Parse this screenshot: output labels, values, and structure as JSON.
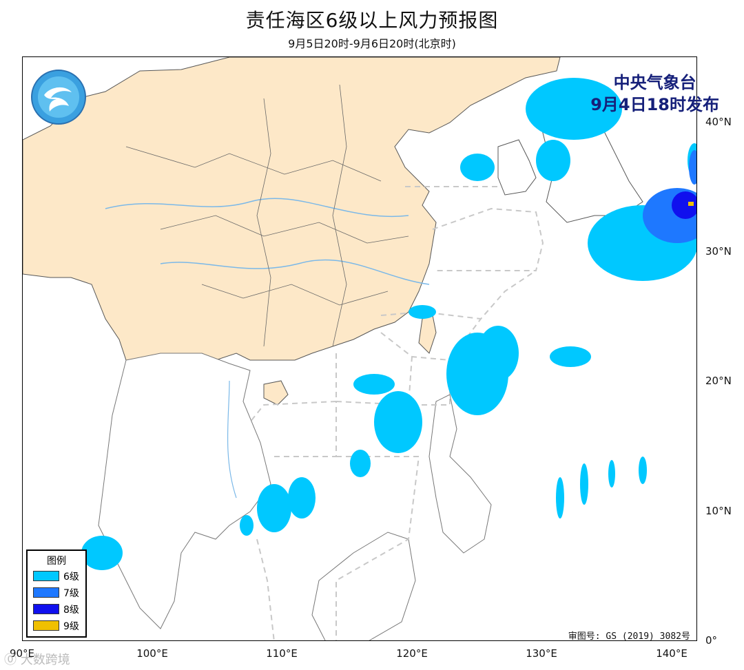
{
  "title": "责任海区6级以上风力预报图",
  "subtitle": "9月5日20时-9月6日20时(北京时)",
  "issuer": {
    "line1": "中央气象台",
    "line2": "9月4日18时发布"
  },
  "approval": "审图号: GS (2019) 3082号",
  "watermark": "⓪ 大数跨境",
  "legend": {
    "title": "图例",
    "items": [
      {
        "label": "6级",
        "color": "#00c8ff"
      },
      {
        "label": "7级",
        "color": "#1e78ff"
      },
      {
        "label": "8级",
        "color": "#1010ee"
      },
      {
        "label": "9级",
        "color": "#f0c000"
      }
    ]
  },
  "axes": {
    "lat_labels": [
      "40°N",
      "30°N",
      "20°N",
      "10°N",
      "0°"
    ],
    "lon_labels": [
      "90°E",
      "100°E",
      "110°E",
      "120°E",
      "130°E",
      "140°E"
    ]
  },
  "colors": {
    "land_china": "#fde8c8",
    "sea": "#ffffff",
    "boundary": "#555555",
    "river": "#7ab8e8",
    "sea_zone_line": "#c8c8c8"
  }
}
